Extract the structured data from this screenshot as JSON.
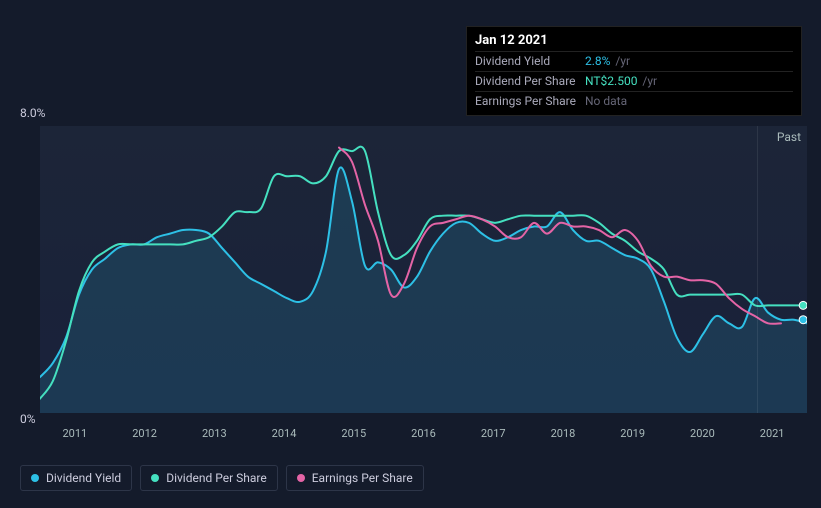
{
  "tooltip": {
    "header": "Jan 12 2021",
    "rows": [
      {
        "label": "Dividend Yield",
        "value": "2.8%",
        "suffix": "/yr",
        "value_color": "#2dc0e6"
      },
      {
        "label": "Dividend Per Share",
        "value": "NT$2.500",
        "suffix": "/yr",
        "value_color": "#45e0c0"
      },
      {
        "label": "Earnings Per Share",
        "value": "No data",
        "suffix": "",
        "value_color": "#667"
      }
    ]
  },
  "chart": {
    "type": "line",
    "background_color": "#141b2b",
    "plot_bg": "#1c2538",
    "y_top_label": "8.0%",
    "y_bot_label": "0%",
    "past_label": "Past",
    "x_labels": [
      "2011",
      "2012",
      "2013",
      "2014",
      "2015",
      "2016",
      "2017",
      "2018",
      "2019",
      "2020",
      "2021"
    ],
    "x_count": 11,
    "ylim": [
      0,
      8
    ],
    "vline_x": 0.935,
    "series": [
      {
        "id": "dividend_yield",
        "label": "Dividend Yield",
        "color": "#2dc0e6",
        "fill": true,
        "values": [
          1.0,
          1.4,
          2.1,
          3.3,
          4.0,
          4.3,
          4.6,
          4.7,
          4.7,
          4.9,
          5.0,
          5.1,
          5.1,
          5.0,
          4.6,
          4.2,
          3.8,
          3.6,
          3.4,
          3.2,
          3.1,
          3.4,
          4.5,
          6.8,
          5.9,
          4.1,
          4.2,
          4.0,
          3.5,
          3.8,
          4.5,
          5.0,
          5.3,
          5.3,
          5.0,
          4.8,
          4.9,
          5.1,
          5.2,
          5.2,
          5.6,
          5.1,
          4.8,
          4.8,
          4.6,
          4.4,
          4.3,
          4.0,
          3.1,
          2.1,
          1.7,
          2.2,
          2.7,
          2.5,
          2.4,
          3.2,
          2.8,
          2.6,
          2.6,
          2.5
        ]
      },
      {
        "id": "dividend_per_share",
        "label": "Dividend Per Share",
        "color": "#45e0c0",
        "fill": false,
        "values": [
          0.4,
          0.9,
          2.0,
          3.4,
          4.2,
          4.5,
          4.7,
          4.7,
          4.7,
          4.7,
          4.7,
          4.7,
          4.8,
          4.9,
          5.2,
          5.6,
          5.6,
          5.7,
          6.6,
          6.6,
          6.6,
          6.4,
          6.6,
          7.3,
          7.3,
          7.3,
          5.6,
          4.4,
          4.4,
          4.8,
          5.4,
          5.5,
          5.5,
          5.5,
          5.4,
          5.3,
          5.4,
          5.5,
          5.5,
          5.5,
          5.5,
          5.5,
          5.5,
          5.3,
          5.0,
          4.8,
          4.5,
          4.3,
          4.0,
          3.3,
          3.3,
          3.3,
          3.3,
          3.3,
          3.3,
          3.0,
          3.0,
          3.0,
          3.0,
          3.0
        ]
      },
      {
        "id": "earnings_per_share",
        "label": "Earnings Per Share",
        "color": "#e464a6",
        "fill": false,
        "values": [
          null,
          null,
          null,
          null,
          null,
          null,
          null,
          null,
          null,
          null,
          null,
          null,
          null,
          null,
          null,
          null,
          null,
          null,
          null,
          null,
          null,
          null,
          null,
          7.4,
          7.0,
          5.8,
          4.8,
          3.3,
          3.6,
          4.6,
          5.2,
          5.3,
          5.4,
          5.5,
          5.4,
          5.2,
          4.9,
          4.9,
          5.3,
          5.0,
          5.3,
          5.2,
          5.2,
          5.1,
          4.9,
          5.1,
          4.8,
          4.1,
          3.8,
          3.8,
          3.7,
          3.7,
          3.6,
          3.2,
          2.9,
          2.7,
          2.5,
          2.5,
          null,
          null
        ]
      }
    ],
    "markers": [
      {
        "series": "dividend_yield",
        "x": 0.995,
        "y": 2.6
      },
      {
        "series": "dividend_per_share",
        "x": 0.995,
        "y": 3.0
      }
    ]
  },
  "legend": [
    {
      "label": "Dividend Yield",
      "color": "#2dc0e6"
    },
    {
      "label": "Dividend Per Share",
      "color": "#45e0c0"
    },
    {
      "label": "Earnings Per Share",
      "color": "#e464a6"
    }
  ]
}
